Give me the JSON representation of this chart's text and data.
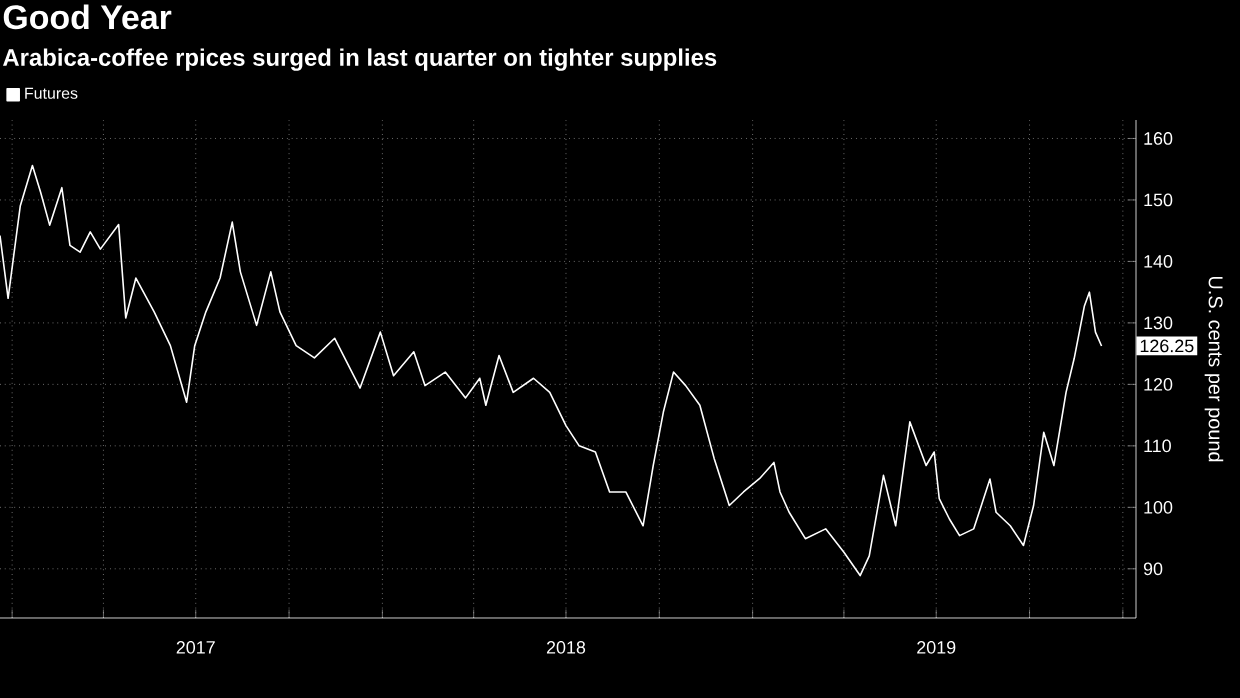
{
  "chart_data": {
    "type": "line",
    "title": "Good Year",
    "subtitle": "Arabica-coffee rpices surged in last quarter on tighter supplies",
    "ylabel": "U.S. cents per pound",
    "x": [
      "2016-12-20",
      "2016-12-28",
      "2017-01-09",
      "2017-01-21",
      "2017-01-29",
      "2017-02-07",
      "2017-02-19",
      "2017-02-27",
      "2017-03-09",
      "2017-03-19",
      "2017-03-29",
      "2017-04-16",
      "2017-04-23",
      "2017-05-03",
      "2017-05-21",
      "2017-06-06",
      "2017-06-22",
      "2017-06-30",
      "2017-07-11",
      "2017-07-25",
      "2017-08-06",
      "2017-08-14",
      "2017-08-30",
      "2017-09-13",
      "2017-09-22",
      "2017-10-08",
      "2017-10-26",
      "2017-11-15",
      "2017-12-10",
      "2017-12-30",
      "2018-01-12",
      "2018-02-01",
      "2018-02-12",
      "2018-03-04",
      "2018-03-24",
      "2018-04-07",
      "2018-04-13",
      "2018-04-26",
      "2018-05-10",
      "2018-05-30",
      "2018-06-15",
      "2018-07-01",
      "2018-07-14",
      "2018-07-30",
      "2018-08-13",
      "2018-08-29",
      "2018-09-15",
      "2018-09-25",
      "2018-10-05",
      "2018-10-15",
      "2018-10-27",
      "2018-11-10",
      "2018-11-24",
      "2018-12-09",
      "2018-12-23",
      "2019-01-08",
      "2019-01-22",
      "2019-01-28",
      "2019-02-06",
      "2019-02-22",
      "2019-03-14",
      "2019-04-01",
      "2019-04-17",
      "2019-04-26",
      "2019-05-10",
      "2019-05-22",
      "2019-06-05",
      "2019-06-21",
      "2019-06-29",
      "2019-07-04",
      "2019-07-14",
      "2019-07-24",
      "2019-08-07",
      "2019-08-23",
      "2019-08-29",
      "2019-09-12",
      "2019-09-25",
      "2019-10-05",
      "2019-10-15",
      "2019-10-25",
      "2019-11-06",
      "2019-11-14",
      "2019-11-24",
      "2019-11-29",
      "2019-12-05",
      "2019-12-11"
    ],
    "series": [
      {
        "name": "Futures",
        "color": "#ffffff",
        "values": [
          144.2,
          134,
          149,
          155.6,
          151.3,
          145.9,
          152,
          142.6,
          141.5,
          144.8,
          142,
          146,
          130.8,
          137.3,
          131.8,
          126.3,
          117.1,
          126.3,
          131.8,
          137.3,
          146.4,
          138.3,
          129.6,
          138.3,
          131.8,
          126.3,
          124.3,
          127.5,
          119.4,
          128.5,
          121.4,
          125.3,
          119.8,
          122,
          117.8,
          121,
          116.6,
          124.7,
          118.7,
          121,
          118.7,
          113.3,
          110,
          109,
          102.5,
          102.5,
          97,
          106.8,
          115.5,
          122,
          119.8,
          116.6,
          108,
          100.3,
          102.5,
          104.7,
          107.3,
          102.5,
          99.2,
          94.9,
          96.5,
          92.7,
          88.9,
          92.1,
          105.2,
          97,
          113.9,
          106.8,
          109,
          101.4,
          98.1,
          95.4,
          96.5,
          104.6,
          99.2,
          97,
          93.8,
          100.3,
          112.2,
          106.8,
          118.7,
          124.2,
          132.7,
          135,
          128.5,
          126.25
        ]
      }
    ],
    "xlim": [
      "2016-12-20",
      "2020-01-14"
    ],
    "ylim": [
      82,
      163
    ],
    "xticks": [
      {
        "value": "2017-01-01",
        "label": null
      },
      {
        "value": "2017-04-01",
        "label": null
      },
      {
        "value": "2017-07-01",
        "label": "2017"
      },
      {
        "value": "2017-10-01",
        "label": null
      },
      {
        "value": "2018-01-01",
        "label": null
      },
      {
        "value": "2018-04-01",
        "label": null
      },
      {
        "value": "2018-07-01",
        "label": "2018"
      },
      {
        "value": "2018-10-01",
        "label": null
      },
      {
        "value": "2019-01-01",
        "label": null
      },
      {
        "value": "2019-04-01",
        "label": null
      },
      {
        "value": "2019-07-01",
        "label": "2019"
      },
      {
        "value": "2019-10-01",
        "label": null
      },
      {
        "value": "2020-01-01",
        "label": null
      }
    ],
    "yticks": [
      90,
      100,
      110,
      120,
      130,
      140,
      150,
      160
    ],
    "annotations": [
      {
        "text": "126.25",
        "y": 126.25
      }
    ],
    "grid": true,
    "legend": "top left",
    "line_style": "solid",
    "marker": "none"
  }
}
